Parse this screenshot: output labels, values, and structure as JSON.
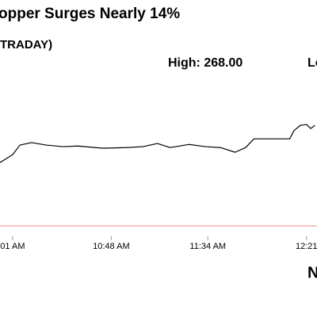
{
  "chart_data": {
    "type": "line",
    "title": "opper Surges Nearly 14%",
    "subtitle": "TRADAY)",
    "high_label": "High: 268.00",
    "low_label": "Lo",
    "source_mark": "N",
    "x": [
      595,
      601,
      604.5,
      610,
      617,
      625,
      632,
      644,
      655,
      663,
      670,
      676,
      685,
      693,
      700,
      707,
      712,
      716,
      723,
      733,
      735,
      738,
      741,
      743,
      745
    ],
    "series": [
      {
        "color": "#000000",
        "values": [
          255.3,
          257.8,
          260.9,
          261.7,
          260.9,
          260.4,
          260.6,
          259.9,
          260.1,
          260.4,
          261.4,
          260.1,
          261.1,
          260.4,
          260.1,
          258.6,
          260.1,
          262.9,
          262.9,
          262.9,
          265.5,
          267.2,
          267.5,
          266.2,
          267.2
        ]
      }
    ],
    "reference_line": {
      "value": 235,
      "color": "#f08080"
    },
    "xlim": [
      595,
      746
    ],
    "ylim": [
      205.8,
      307.4
    ],
    "xticks": [
      {
        "value": 601,
        "label": "01 AM"
      },
      {
        "value": 648,
        "label": "10:48 AM"
      },
      {
        "value": 694,
        "label": "11:34 AM"
      },
      {
        "value": 741,
        "label": "12:21"
      }
    ]
  }
}
